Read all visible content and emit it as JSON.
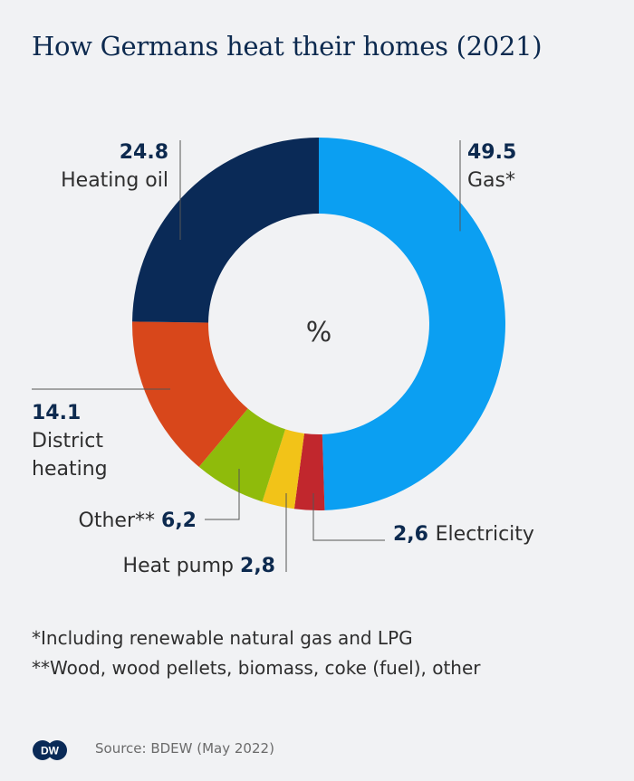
{
  "title": "How Germans heat their homes (2021)",
  "chart_data": {
    "type": "pie",
    "donut": true,
    "center_label": "%",
    "slices": [
      {
        "name": "Gas*",
        "value": 49.5,
        "value_label": "49.5",
        "color": "#0b9ff2"
      },
      {
        "name": "Electricity",
        "value": 2.6,
        "value_label": "2,6",
        "color": "#c1272d"
      },
      {
        "name": "Heat pump",
        "value": 2.8,
        "value_label": "2,8",
        "color": "#f2c318"
      },
      {
        "name": "Other**",
        "value": 6.2,
        "value_label": "6,2",
        "color": "#8fbb0b"
      },
      {
        "name": "District heating",
        "value": 14.1,
        "value_label": "14.1",
        "color": "#d8471b"
      },
      {
        "name": "Heating oil",
        "value": 24.8,
        "value_label": "24.8",
        "color": "#0a2a57"
      }
    ],
    "district_heating_lines": [
      "District",
      "heating"
    ]
  },
  "footnotes": [
    "*Including renewable natural gas and LPG",
    "**Wood, wood pellets, biomass, coke (fuel), other"
  ],
  "source": "Source: BDEW (May 2022)",
  "logo_text": "DW"
}
